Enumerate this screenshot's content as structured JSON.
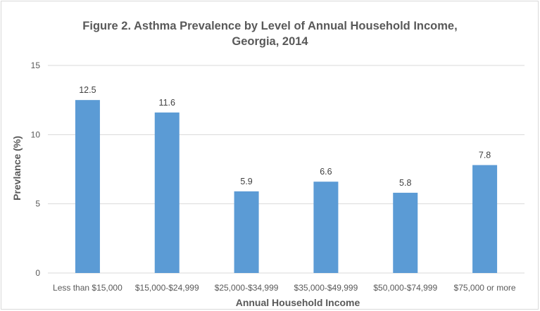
{
  "chart_data": {
    "type": "bar",
    "title": "Figure 2. Asthma Prevalence by Level of Annual Household Income,\nGeorgia, 2014",
    "xlabel": "Annual Household Income",
    "ylabel": "Prevlance (%)",
    "categories": [
      "Less than $15,000",
      "$15,000-$24,999",
      "$25,000-$34,999",
      "$35,000-$49,999",
      "$50,000-$74,999",
      "$75,000 or more"
    ],
    "values": [
      12.5,
      11.6,
      5.9,
      6.6,
      5.8,
      7.8
    ],
    "data_labels": [
      "12.5",
      "11.6",
      "5.9",
      "6.6",
      "5.8",
      "7.8"
    ],
    "ylim": [
      0,
      15
    ],
    "yticks": [
      0,
      5,
      10,
      15
    ],
    "grid": true,
    "legend": "none",
    "colors": {
      "bar": "#5b9bd5",
      "grid": "#d9d9d9",
      "text": "#595959"
    }
  }
}
